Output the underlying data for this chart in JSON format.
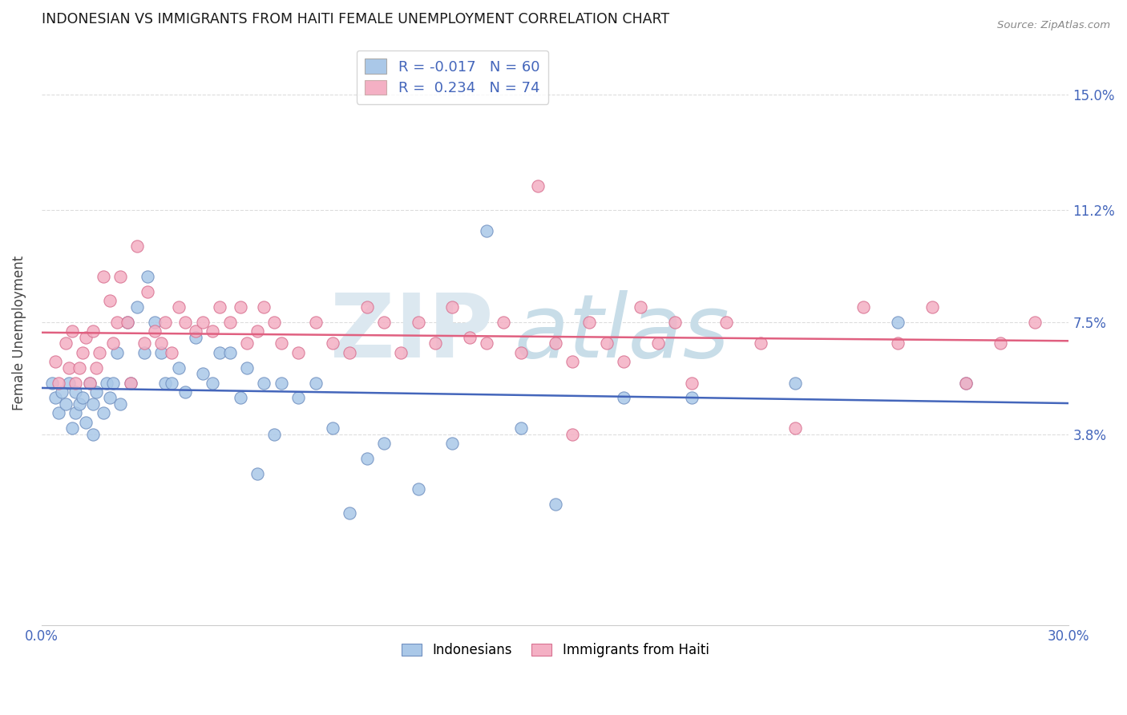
{
  "title": "INDONESIAN VS IMMIGRANTS FROM HAITI FEMALE UNEMPLOYMENT CORRELATION CHART",
  "source": "Source: ZipAtlas.com",
  "ylabel": "Female Unemployment",
  "ytick_labels": [
    "15.0%",
    "11.2%",
    "7.5%",
    "3.8%"
  ],
  "ytick_values": [
    0.15,
    0.112,
    0.075,
    0.038
  ],
  "xmin": 0.0,
  "xmax": 0.3,
  "ymin": -0.025,
  "ymax": 0.168,
  "blue_color": "#aac8e8",
  "pink_color": "#f4b0c4",
  "blue_line_color": "#4466bb",
  "pink_line_color": "#e06080",
  "blue_edge_color": "#7090c0",
  "pink_edge_color": "#d87090",
  "legend_r1": "-0.017",
  "legend_n1": "60",
  "legend_r2": "0.234",
  "legend_n2": "74",
  "legend_color1": "#aac8e8",
  "legend_color2": "#f4b0c4",
  "label_color": "#4466bb",
  "watermark_zip_color": "#dce8f0",
  "watermark_atlas_color": "#c8dde8",
  "ind_x": [
    0.003,
    0.004,
    0.005,
    0.006,
    0.007,
    0.008,
    0.009,
    0.01,
    0.01,
    0.011,
    0.012,
    0.013,
    0.014,
    0.015,
    0.015,
    0.016,
    0.018,
    0.019,
    0.02,
    0.021,
    0.022,
    0.023,
    0.025,
    0.026,
    0.028,
    0.03,
    0.031,
    0.033,
    0.035,
    0.036,
    0.038,
    0.04,
    0.042,
    0.045,
    0.047,
    0.05,
    0.052,
    0.055,
    0.058,
    0.06,
    0.063,
    0.065,
    0.068,
    0.07,
    0.075,
    0.08,
    0.085,
    0.09,
    0.095,
    0.1,
    0.11,
    0.12,
    0.13,
    0.14,
    0.15,
    0.17,
    0.19,
    0.22,
    0.25,
    0.27
  ],
  "ind_y": [
    0.055,
    0.05,
    0.045,
    0.052,
    0.048,
    0.055,
    0.04,
    0.052,
    0.045,
    0.048,
    0.05,
    0.042,
    0.055,
    0.048,
    0.038,
    0.052,
    0.045,
    0.055,
    0.05,
    0.055,
    0.065,
    0.048,
    0.075,
    0.055,
    0.08,
    0.065,
    0.09,
    0.075,
    0.065,
    0.055,
    0.055,
    0.06,
    0.052,
    0.07,
    0.058,
    0.055,
    0.065,
    0.065,
    0.05,
    0.06,
    0.025,
    0.055,
    0.038,
    0.055,
    0.05,
    0.055,
    0.04,
    0.012,
    0.03,
    0.035,
    0.02,
    0.035,
    0.105,
    0.04,
    0.015,
    0.05,
    0.05,
    0.055,
    0.075,
    0.055
  ],
  "hai_x": [
    0.004,
    0.005,
    0.007,
    0.008,
    0.009,
    0.01,
    0.011,
    0.012,
    0.013,
    0.014,
    0.015,
    0.016,
    0.017,
    0.018,
    0.02,
    0.021,
    0.022,
    0.023,
    0.025,
    0.026,
    0.028,
    0.03,
    0.031,
    0.033,
    0.035,
    0.036,
    0.038,
    0.04,
    0.042,
    0.045,
    0.047,
    0.05,
    0.052,
    0.055,
    0.058,
    0.06,
    0.063,
    0.065,
    0.068,
    0.07,
    0.075,
    0.08,
    0.085,
    0.09,
    0.095,
    0.1,
    0.105,
    0.11,
    0.115,
    0.12,
    0.125,
    0.13,
    0.135,
    0.14,
    0.145,
    0.15,
    0.155,
    0.16,
    0.165,
    0.17,
    0.175,
    0.18,
    0.185,
    0.19,
    0.2,
    0.21,
    0.22,
    0.24,
    0.25,
    0.26,
    0.27,
    0.28,
    0.29,
    0.155
  ],
  "hai_y": [
    0.062,
    0.055,
    0.068,
    0.06,
    0.072,
    0.055,
    0.06,
    0.065,
    0.07,
    0.055,
    0.072,
    0.06,
    0.065,
    0.09,
    0.082,
    0.068,
    0.075,
    0.09,
    0.075,
    0.055,
    0.1,
    0.068,
    0.085,
    0.072,
    0.068,
    0.075,
    0.065,
    0.08,
    0.075,
    0.072,
    0.075,
    0.072,
    0.08,
    0.075,
    0.08,
    0.068,
    0.072,
    0.08,
    0.075,
    0.068,
    0.065,
    0.075,
    0.068,
    0.065,
    0.08,
    0.075,
    0.065,
    0.075,
    0.068,
    0.08,
    0.07,
    0.068,
    0.075,
    0.065,
    0.12,
    0.068,
    0.062,
    0.075,
    0.068,
    0.062,
    0.08,
    0.068,
    0.075,
    0.055,
    0.075,
    0.068,
    0.04,
    0.08,
    0.068,
    0.08,
    0.055,
    0.068,
    0.075,
    0.038
  ],
  "grid_color": "#dddddd",
  "spine_color": "#cccccc",
  "bottom_ind_label": "Indonesians",
  "bottom_hai_label": "Immigrants from Haiti"
}
